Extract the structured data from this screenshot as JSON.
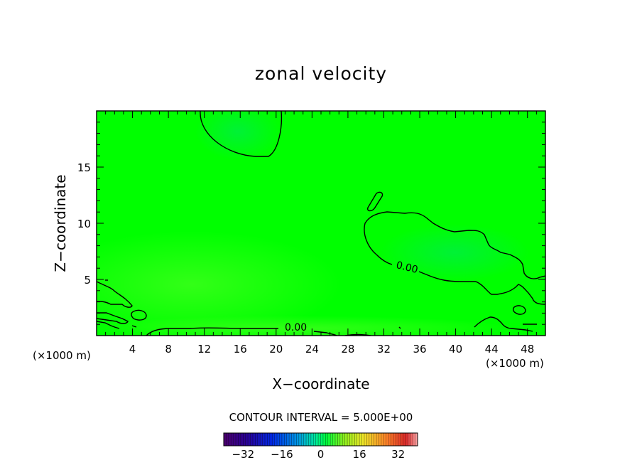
{
  "chart_data": {
    "type": "contour",
    "title": "zonal velocity",
    "xlabel": "X−coordinate",
    "ylabel": "Z−coordinate",
    "x_unit_left": "(×1000 m)",
    "x_unit_right": "(×1000 m)",
    "xlim": [
      0,
      50
    ],
    "ylim": [
      0,
      20
    ],
    "x_ticks": [
      4,
      8,
      12,
      16,
      20,
      24,
      28,
      32,
      36,
      40,
      44,
      48
    ],
    "y_ticks": [
      5,
      10,
      15
    ],
    "contour_interval_text": "CONTOUR INTERVAL = 5.000E+00",
    "contour_labels": [
      {
        "text": "0.00",
        "x": 34.5,
        "y": 5.8
      },
      {
        "text": "0.00",
        "x": 22.2,
        "y": 0.45
      }
    ],
    "colorbar": {
      "min": -40,
      "max": 40,
      "ticks": [
        -32,
        -16,
        0,
        16,
        32
      ],
      "tick_labels": [
        "−32",
        "−16",
        "0",
        "16",
        "32"
      ]
    },
    "colors": {
      "field": "#00ff00",
      "field_light": "#3eff36",
      "field_cool": "#00f04a",
      "contour": "#000000"
    }
  }
}
